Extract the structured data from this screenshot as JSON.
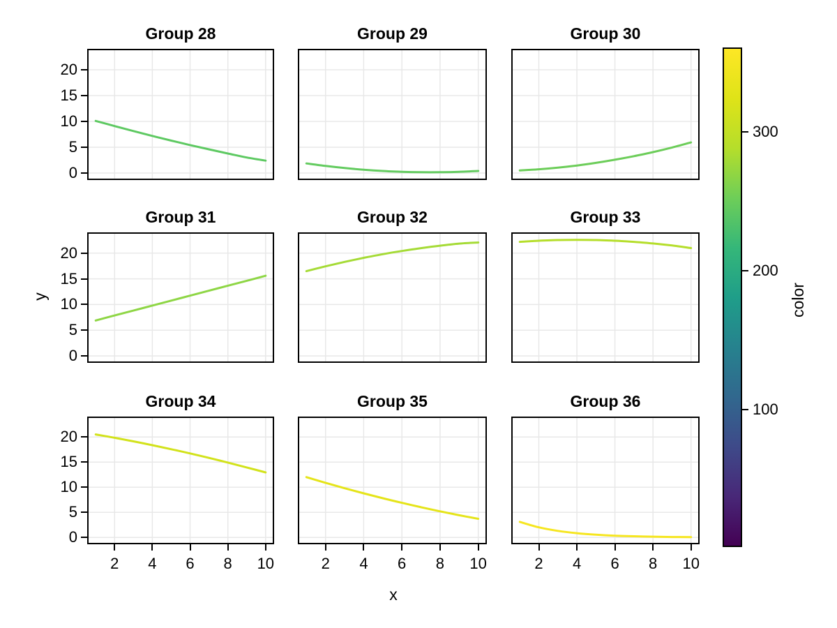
{
  "chart_data": {
    "type": "line",
    "description": "3x3 facet grid of smooth single-line plots sharing axes, colored by a viridis color scale",
    "x": [
      1,
      2,
      3,
      4,
      5,
      6,
      7,
      8,
      9,
      10
    ],
    "xlabel": "x",
    "ylabel": "y",
    "x_ticks": [
      2,
      4,
      6,
      8,
      10
    ],
    "y_ticks": [
      0,
      5,
      10,
      15,
      20
    ],
    "xlim": [
      0.55,
      10.45
    ],
    "ylim": [
      -1.35,
      24.05
    ],
    "grid": true,
    "grid_color": "#e8e8e8",
    "line_width": 3,
    "colorbar": {
      "label": "color",
      "ticks": [
        300,
        200,
        100
      ],
      "domain": [
        2,
        360
      ],
      "colormap": "viridis",
      "gradient_top_to_bottom": [
        "#fde725",
        "#dfe318",
        "#b5de2b",
        "#6ece58",
        "#35b779",
        "#1f9e89",
        "#26828e",
        "#31688e",
        "#3e4a89",
        "#482878",
        "#440154"
      ]
    },
    "facets": [
      {
        "title": "Group 28",
        "color": "#5ec962",
        "y": [
          10.1,
          9.1,
          8.13,
          7.19,
          6.29,
          5.42,
          4.59,
          3.79,
          3.02,
          2.4
        ]
      },
      {
        "title": "Group 29",
        "color": "#63cb5f",
        "y": [
          1.86,
          1.38,
          0.97,
          0.65,
          0.4,
          0.24,
          0.16,
          0.16,
          0.24,
          0.4
        ]
      },
      {
        "title": "Group 30",
        "color": "#6ccd59",
        "y": [
          0.5,
          0.73,
          1.05,
          1.46,
          1.97,
          2.58,
          3.27,
          4.06,
          4.95,
          5.93
        ]
      },
      {
        "title": "Group 31",
        "color": "#8ed645",
        "y": [
          6.9,
          7.87,
          8.83,
          9.8,
          10.77,
          11.73,
          12.7,
          13.67,
          14.63,
          15.6
        ]
      },
      {
        "title": "Group 32",
        "color": "#a5db36",
        "y": [
          16.5,
          17.44,
          18.3,
          19.09,
          19.8,
          20.43,
          20.98,
          21.46,
          21.86,
          22.08
        ]
      },
      {
        "title": "Group 33",
        "color": "#b5de2b",
        "y": [
          22.2,
          22.42,
          22.56,
          22.6,
          22.56,
          22.42,
          22.2,
          21.89,
          21.49,
          21.0
        ]
      },
      {
        "title": "Group 34",
        "color": "#d2e21b",
        "y": [
          20.5,
          19.83,
          19.12,
          18.36,
          17.56,
          16.72,
          15.83,
          14.9,
          13.93,
          12.95
        ]
      },
      {
        "title": "Group 35",
        "color": "#e5e419",
        "y": [
          12.0,
          10.88,
          9.8,
          8.78,
          7.81,
          6.89,
          6.02,
          5.2,
          4.43,
          3.72
        ]
      },
      {
        "title": "Group 36",
        "color": "#f6e620",
        "y": [
          3.1,
          2.02,
          1.31,
          0.85,
          0.56,
          0.36,
          0.24,
          0.16,
          0.1,
          0.07
        ]
      }
    ]
  }
}
